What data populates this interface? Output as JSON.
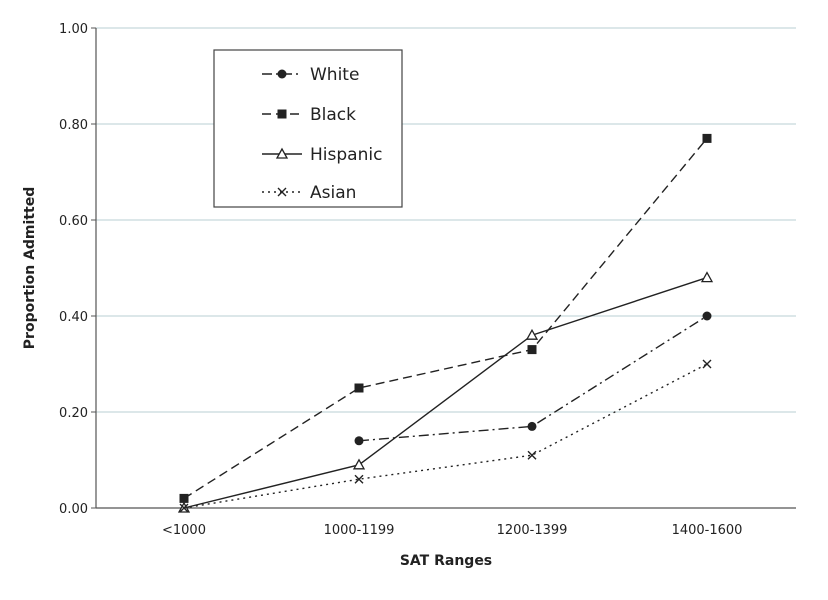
{
  "chart_data": {
    "type": "line",
    "title": "",
    "xlabel": "SAT Ranges",
    "ylabel": "Proportion Admitted",
    "categories": [
      "<1000",
      "1000-1199",
      "1200-1399",
      "1400-1600"
    ],
    "ylim": [
      0,
      1
    ],
    "yticks": [
      "0.00",
      "0.20",
      "0.40",
      "0.60",
      "0.80",
      "1.00"
    ],
    "ytick_values": [
      0,
      0.2,
      0.4,
      0.6,
      0.8,
      1.0
    ],
    "grid": true,
    "legend_position": "top-left",
    "series": [
      {
        "name": "White",
        "values": [
          null,
          0.14,
          0.17,
          0.4
        ],
        "marker": "circle",
        "dash": "dashdot",
        "color": "#222222"
      },
      {
        "name": "Black",
        "values": [
          0.02,
          0.25,
          0.33,
          0.77
        ],
        "marker": "square",
        "dash": "dashed",
        "color": "#222222"
      },
      {
        "name": "Hispanic",
        "values": [
          0.0,
          0.09,
          0.36,
          0.48
        ],
        "marker": "triangle-open",
        "dash": "solid",
        "color": "#222222"
      },
      {
        "name": "Asian",
        "values": [
          0.0,
          0.06,
          0.11,
          0.3
        ],
        "marker": "x",
        "dash": "dotted",
        "color": "#222222"
      }
    ]
  }
}
